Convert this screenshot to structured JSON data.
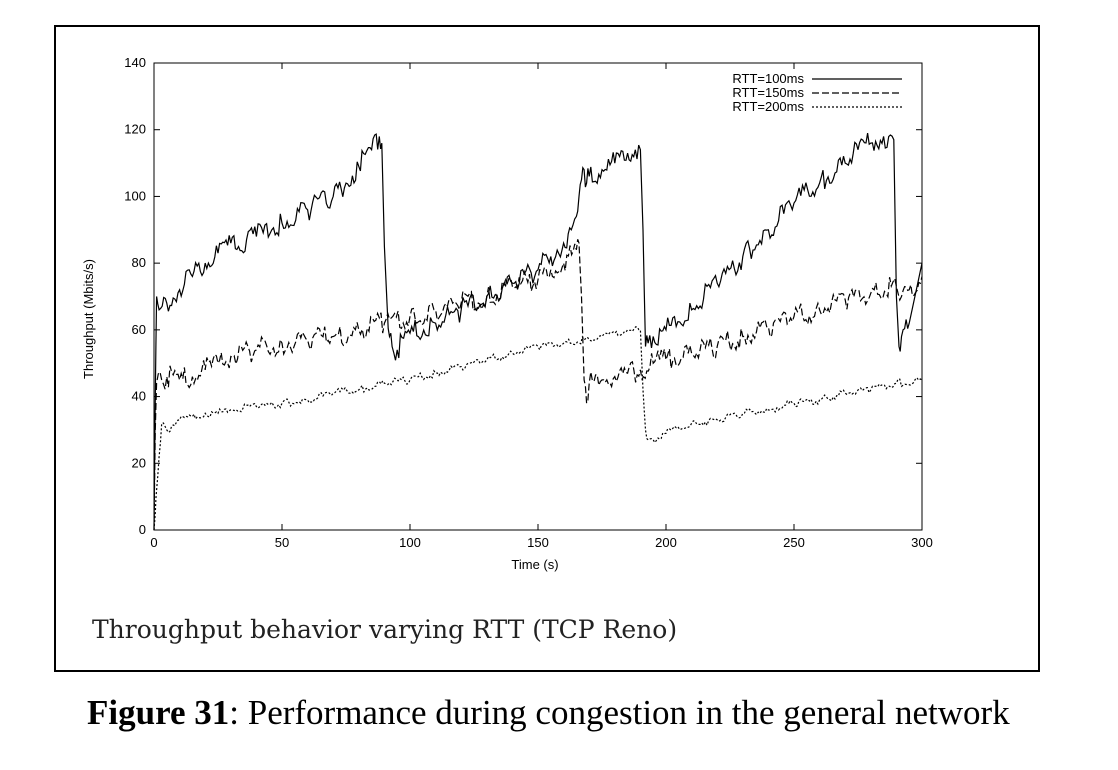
{
  "figure": {
    "inner_title": "Throughput behavior varying RTT (TCP Reno)",
    "caption_label": "Figure 31",
    "caption_text": ": Performance  during  congestion  in the  general  network"
  },
  "chart_data": {
    "type": "line",
    "title": "Throughput behavior varying RTT (TCP Reno)",
    "xlabel": "Time (s)",
    "ylabel": "Throughput (Mbits/s)",
    "xlim": [
      0,
      300
    ],
    "ylim": [
      0,
      140
    ],
    "xticks": [
      0,
      50,
      100,
      150,
      200,
      250,
      300
    ],
    "yticks": [
      0,
      20,
      40,
      60,
      80,
      100,
      120,
      140
    ],
    "xtick_labels": [
      "0",
      "50",
      "100",
      "150",
      "200",
      "250",
      "300"
    ],
    "ytick_labels": [
      "0",
      "20",
      "40",
      "60",
      "80",
      "100",
      "120",
      "140"
    ],
    "grid": false,
    "legend_position": "top-right",
    "series": [
      {
        "name": "RTT=100ms",
        "style": "solid",
        "x": [
          0,
          0.5,
          1,
          2,
          5,
          10,
          15,
          20,
          25,
          30,
          33,
          40,
          50,
          60,
          70,
          75,
          80,
          85,
          88,
          89,
          90,
          91,
          92,
          93,
          95,
          100,
          110,
          120,
          130,
          140,
          150,
          155,
          160,
          163,
          165,
          166,
          167,
          168,
          169,
          170,
          175,
          180,
          185,
          188,
          190,
          191,
          192,
          193,
          195,
          200,
          210,
          220,
          230,
          240,
          250,
          260,
          270,
          275,
          280,
          285,
          289,
          290,
          291,
          292,
          295,
          300
        ],
        "y": [
          0,
          40,
          70,
          66,
          68,
          72,
          76,
          80,
          83,
          86,
          85,
          88,
          92,
          96,
          100,
          104,
          109,
          114,
          118,
          116,
          85,
          68,
          58,
          55,
          54,
          59,
          62,
          66,
          70,
          74,
          78,
          82,
          86,
          90,
          94,
          100,
          105,
          108,
          104,
          106,
          108,
          110,
          113,
          114,
          114,
          90,
          55,
          56,
          58,
          60,
          66,
          74,
          82,
          90,
          98,
          104,
          110,
          114,
          116,
          118,
          117,
          70,
          55,
          58,
          62,
          80
        ]
      },
      {
        "name": "RTT=150ms",
        "style": "dashed",
        "x": [
          0,
          0.5,
          1,
          3,
          5,
          10,
          15,
          20,
          25,
          30,
          40,
          50,
          60,
          70,
          80,
          90,
          100,
          110,
          120,
          130,
          140,
          150,
          155,
          160,
          165,
          166,
          167,
          168,
          169,
          170,
          175,
          180,
          185,
          190,
          195,
          200,
          210,
          220,
          230,
          240,
          250,
          260,
          270,
          280,
          290,
          292,
          295,
          300
        ],
        "y": [
          0,
          30,
          44,
          45,
          46,
          45,
          46,
          48,
          50,
          52,
          54,
          56,
          57,
          58,
          60,
          62,
          64,
          66,
          68,
          70,
          73,
          75,
          78,
          80,
          84,
          86,
          70,
          45,
          38,
          44,
          45,
          46,
          47,
          48,
          50,
          51,
          53,
          55,
          58,
          61,
          64,
          66,
          69,
          71,
          73,
          70,
          72,
          76
        ]
      },
      {
        "name": "RTT=200ms",
        "style": "dotted",
        "x": [
          0,
          0.5,
          1,
          2,
          3,
          5,
          10,
          15,
          20,
          25,
          30,
          40,
          50,
          60,
          70,
          80,
          90,
          100,
          110,
          120,
          130,
          140,
          150,
          160,
          170,
          175,
          180,
          185,
          190,
          191,
          192,
          193,
          195,
          200,
          210,
          220,
          230,
          240,
          250,
          260,
          270,
          280,
          290,
          300
        ],
        "y": [
          0,
          5,
          12,
          22,
          32,
          30,
          33,
          34,
          35,
          35,
          36,
          37,
          38,
          39,
          41,
          42,
          44,
          45,
          47,
          49,
          51,
          53,
          55,
          56,
          57,
          58,
          59,
          60,
          60,
          42,
          30,
          27,
          27,
          29,
          32,
          33,
          35,
          36,
          38,
          39,
          41,
          42,
          44,
          45
        ]
      }
    ]
  }
}
